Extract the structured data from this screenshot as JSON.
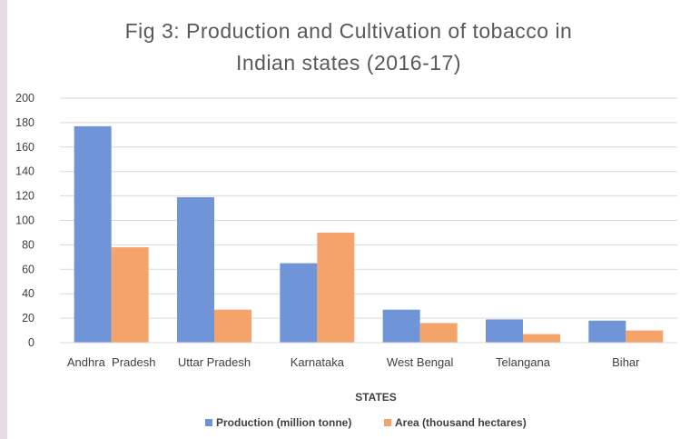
{
  "chart_data": {
    "type": "bar",
    "title_lines": [
      "Fig 3: Production and Cultivation of tobacco in",
      "Indian states (2016-17)"
    ],
    "xlabel": "STATES",
    "ylabel": "",
    "categories": [
      "Andhra  Pradesh",
      "Uttar Pradesh",
      "Karnataka",
      "West Bengal",
      "Telangana",
      "Bihar"
    ],
    "series": [
      {
        "name": "Production (million tonne)",
        "color": "#6f95d8",
        "values": [
          177,
          119,
          65,
          27,
          19,
          18
        ]
      },
      {
        "name": "Area (thousand hectares)",
        "color": "#f4a36b",
        "values": [
          78,
          27,
          90,
          16,
          7,
          10
        ]
      }
    ],
    "ylim": [
      0,
      200
    ],
    "yticks": [
      "0",
      "20",
      "40",
      "60",
      "80",
      "100",
      "120",
      "140",
      "160",
      "180",
      "200"
    ],
    "grid": true,
    "legend_position": "bottom"
  }
}
